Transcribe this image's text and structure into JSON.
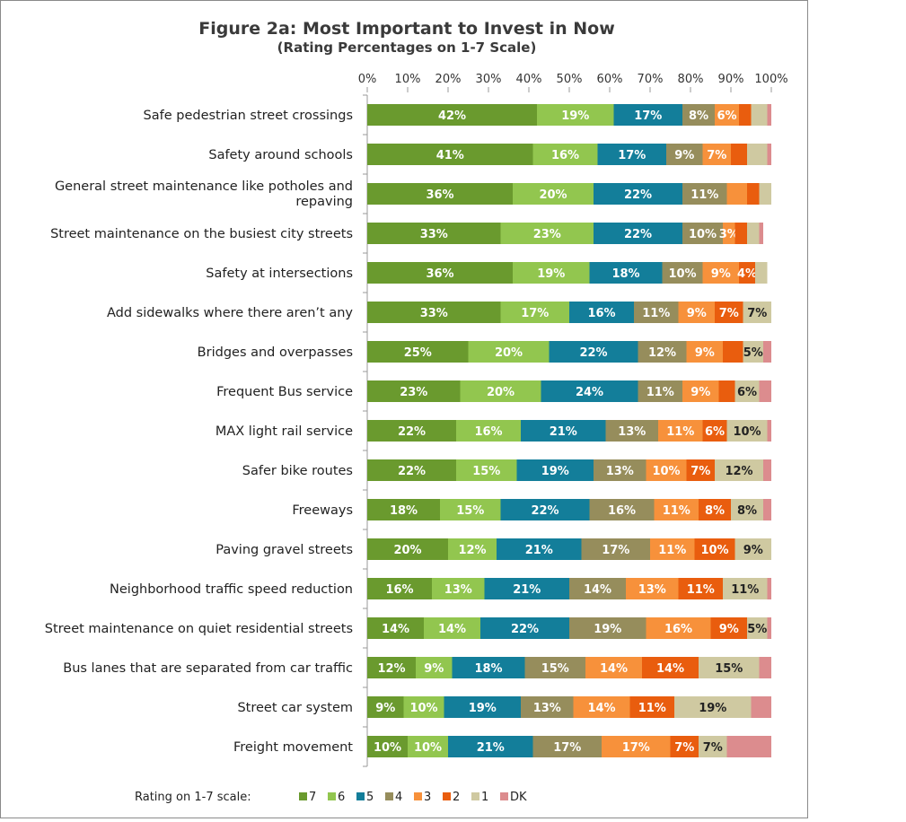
{
  "chart_data": {
    "type": "bar",
    "orientation": "horizontal",
    "stacked": true,
    "title": "Figure 2a: Most Important to Invest in Now",
    "subtitle": "(Rating Percentages on 1-7 Scale)",
    "xlim": [
      0,
      100
    ],
    "xticks": [
      "0%",
      "10%",
      "20%",
      "30%",
      "40%",
      "50%",
      "60%",
      "70%",
      "80%",
      "90%",
      "100%"
    ],
    "legend_title": "Rating on 1-7 scale:",
    "legend_position": "bottom",
    "categories": [
      [
        "Safe pedestrian street crossings"
      ],
      [
        "Safety around schools"
      ],
      [
        "General street maintenance like potholes and",
        "repaving"
      ],
      [
        "Street maintenance on the busiest city streets"
      ],
      [
        "Safety at intersections"
      ],
      [
        "Add sidewalks where there aren’t any"
      ],
      [
        "Bridges and overpasses"
      ],
      [
        "Frequent Bus service"
      ],
      [
        "MAX light rail service"
      ],
      [
        "Safer bike routes"
      ],
      [
        "Freeways"
      ],
      [
        "Paving gravel streets"
      ],
      [
        "Neighborhood traffic speed reduction"
      ],
      [
        "Street maintenance on quiet residential streets"
      ],
      [
        "Bus lanes that are separated from car traffic"
      ],
      [
        "Street car system"
      ],
      [
        "Freight movement"
      ]
    ],
    "series": [
      {
        "name": "7",
        "color": "#6a9a2e",
        "label_color": "#ffffff",
        "values": [
          42,
          41,
          36,
          33,
          36,
          33,
          25,
          23,
          22,
          22,
          18,
          20,
          16,
          14,
          12,
          9,
          10
        ],
        "labels": [
          "42%",
          "41%",
          "36%",
          "33%",
          "36%",
          "33%",
          "25%",
          "23%",
          "22%",
          "22%",
          "18%",
          "20%",
          "16%",
          "14%",
          "12%",
          "9%",
          "10%"
        ]
      },
      {
        "name": "6",
        "color": "#92c64f",
        "label_color": "#ffffff",
        "values": [
          19,
          16,
          20,
          23,
          19,
          17,
          20,
          20,
          16,
          15,
          15,
          12,
          13,
          14,
          9,
          10,
          10
        ],
        "labels": [
          "19%",
          "16%",
          "20%",
          "23%",
          "19%",
          "17%",
          "20%",
          "20%",
          "16%",
          "15%",
          "15%",
          "12%",
          "13%",
          "14%",
          "9%",
          "10%",
          "10%"
        ]
      },
      {
        "name": "5",
        "color": "#137e9a",
        "label_color": "#ffffff",
        "values": [
          17,
          17,
          22,
          22,
          18,
          16,
          22,
          24,
          21,
          19,
          22,
          21,
          21,
          22,
          18,
          19,
          21
        ],
        "labels": [
          "17%",
          "17%",
          "22%",
          "22%",
          "18%",
          "16%",
          "22%",
          "24%",
          "21%",
          "19%",
          "22%",
          "21%",
          "21%",
          "22%",
          "18%",
          "19%",
          "21%"
        ]
      },
      {
        "name": "4",
        "color": "#968d5c",
        "label_color": "#ffffff",
        "values": [
          8,
          9,
          11,
          10,
          10,
          11,
          12,
          11,
          13,
          13,
          16,
          17,
          14,
          19,
          15,
          13,
          17
        ],
        "labels": [
          "8%",
          "9%",
          "11%",
          "10%",
          "10%",
          "11%",
          "12%",
          "11%",
          "13%",
          "13%",
          "16%",
          "17%",
          "14%",
          "19%",
          "15%",
          "13%",
          "17%"
        ]
      },
      {
        "name": "3",
        "color": "#f7913b",
        "label_color": "#ffffff",
        "values": [
          6,
          7,
          5,
          3,
          9,
          9,
          9,
          9,
          11,
          10,
          11,
          11,
          13,
          16,
          14,
          14,
          17
        ],
        "labels": [
          "6%",
          "7%",
          "",
          "3%",
          "9%",
          "9%",
          "9%",
          "9%",
          "11%",
          "10%",
          "11%",
          "11%",
          "13%",
          "16%",
          "14%",
          "14%",
          "17%"
        ]
      },
      {
        "name": "2",
        "color": "#e95d0e",
        "label_color": "#ffffff",
        "values": [
          3,
          4,
          3,
          3,
          4,
          7,
          5,
          4,
          6,
          7,
          8,
          10,
          11,
          9,
          14,
          11,
          7
        ],
        "labels": [
          "",
          "",
          "",
          "",
          "4%",
          "7%",
          "",
          "",
          "6%",
          "7%",
          "8%",
          "10%",
          "11%",
          "9%",
          "14%",
          "11%",
          "7%"
        ]
      },
      {
        "name": "1",
        "color": "#cfc9a1",
        "label_color": "#222222",
        "values": [
          4,
          5,
          3,
          3,
          3,
          7,
          5,
          6,
          10,
          12,
          8,
          9,
          11,
          5,
          15,
          19,
          7
        ],
        "labels": [
          "",
          "",
          "",
          "",
          "",
          "7%",
          "5%",
          "6%",
          "10%",
          "12%",
          "8%",
          "9%",
          "11%",
          "5%",
          "15%",
          "19%",
          "7%"
        ]
      },
      {
        "name": "DK",
        "color": "#dc8c8e",
        "label_color": "#222222",
        "values": [
          1,
          1,
          0,
          1,
          0,
          0,
          2,
          3,
          1,
          2,
          2,
          0,
          1,
          1,
          3,
          5,
          11
        ],
        "labels": [
          "",
          "",
          "",
          "",
          "",
          "",
          "",
          "",
          "",
          "",
          "",
          "",
          "",
          "",
          "",
          "",
          ""
        ]
      }
    ]
  }
}
